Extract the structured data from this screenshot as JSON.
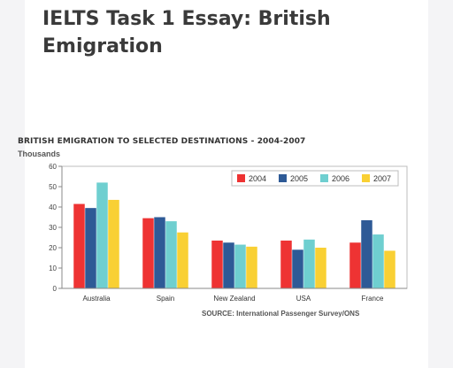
{
  "page": {
    "title": "IELTS Task 1 Essay: British Emigration"
  },
  "chart_data": {
    "type": "bar",
    "title": "BRITISH EMIGRATION TO SELECTED DESTINATIONS - 2004-2007",
    "ylabel": "Thousands",
    "xlabel": "",
    "categories": [
      "Australia",
      "Spain",
      "New Zealand",
      "USA",
      "France"
    ],
    "series": [
      {
        "name": "2004",
        "color": "#ee3333",
        "values": [
          41.5,
          34.5,
          23.5,
          23.5,
          22.5
        ]
      },
      {
        "name": "2005",
        "color": "#2e5a96",
        "values": [
          39.5,
          35,
          22.5,
          19,
          33.5
        ]
      },
      {
        "name": "2006",
        "color": "#6fcfd0",
        "values": [
          52,
          33,
          21.5,
          24,
          26.5
        ]
      },
      {
        "name": "2007",
        "color": "#f9d034",
        "values": [
          43.5,
          27.5,
          20.5,
          20,
          18.5
        ]
      }
    ],
    "ylim": [
      0,
      60
    ],
    "yticks": [
      0,
      10,
      20,
      30,
      40,
      50,
      60
    ],
    "grid": false,
    "legend_position": "top-right",
    "source": "SOURCE: International Passenger Survey/ONS"
  }
}
